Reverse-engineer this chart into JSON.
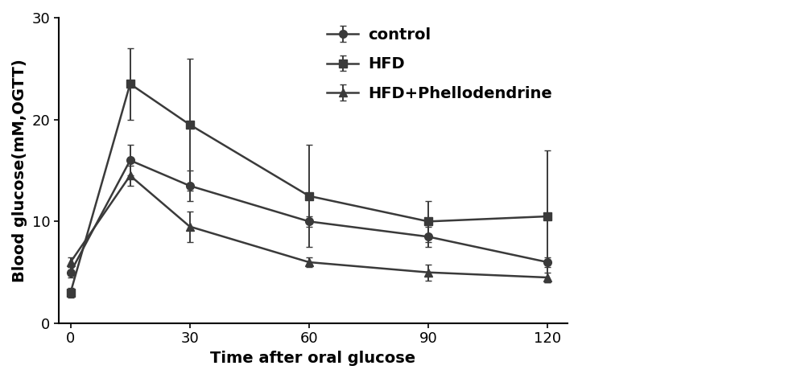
{
  "x": [
    0,
    15,
    30,
    60,
    90,
    120
  ],
  "control": {
    "y": [
      5.0,
      16.0,
      13.5,
      10.0,
      8.5,
      6.0
    ],
    "yerr": [
      0.5,
      1.5,
      1.5,
      0.5,
      1.0,
      0.5
    ],
    "color": "#3a3a3a",
    "marker": "o",
    "label": "control"
  },
  "HFD": {
    "y": [
      3.0,
      23.5,
      19.5,
      12.5,
      10.0,
      10.5
    ],
    "yerr": [
      0.5,
      3.5,
      6.5,
      5.0,
      2.0,
      6.5
    ],
    "color": "#3a3a3a",
    "marker": "s",
    "label": "HFD"
  },
  "HFD_Phellodendrine": {
    "y": [
      6.0,
      14.5,
      9.5,
      6.0,
      5.0,
      4.5
    ],
    "yerr": [
      0.5,
      1.0,
      1.5,
      0.5,
      0.8,
      0.5
    ],
    "color": "#3a3a3a",
    "marker": "^",
    "label": "HFD+Phellodendrine"
  },
  "xlabel": "Time after oral glucose",
  "ylabel": "Blood glucose(mM,OGTT)",
  "ylim": [
    0,
    30
  ],
  "xlim": [
    -3,
    125
  ],
  "yticks": [
    0,
    10,
    20,
    30
  ],
  "xticks": [
    0,
    30,
    60,
    90,
    120
  ],
  "xtick_labels": [
    "0",
    "30",
    "60",
    "90",
    "120"
  ],
  "linewidth": 1.8,
  "markersize": 7,
  "capsize": 3,
  "elinewidth": 1.4,
  "legend_fontsize": 14,
  "axis_label_fontsize": 14,
  "tick_fontsize": 13,
  "background_color": "#ffffff"
}
